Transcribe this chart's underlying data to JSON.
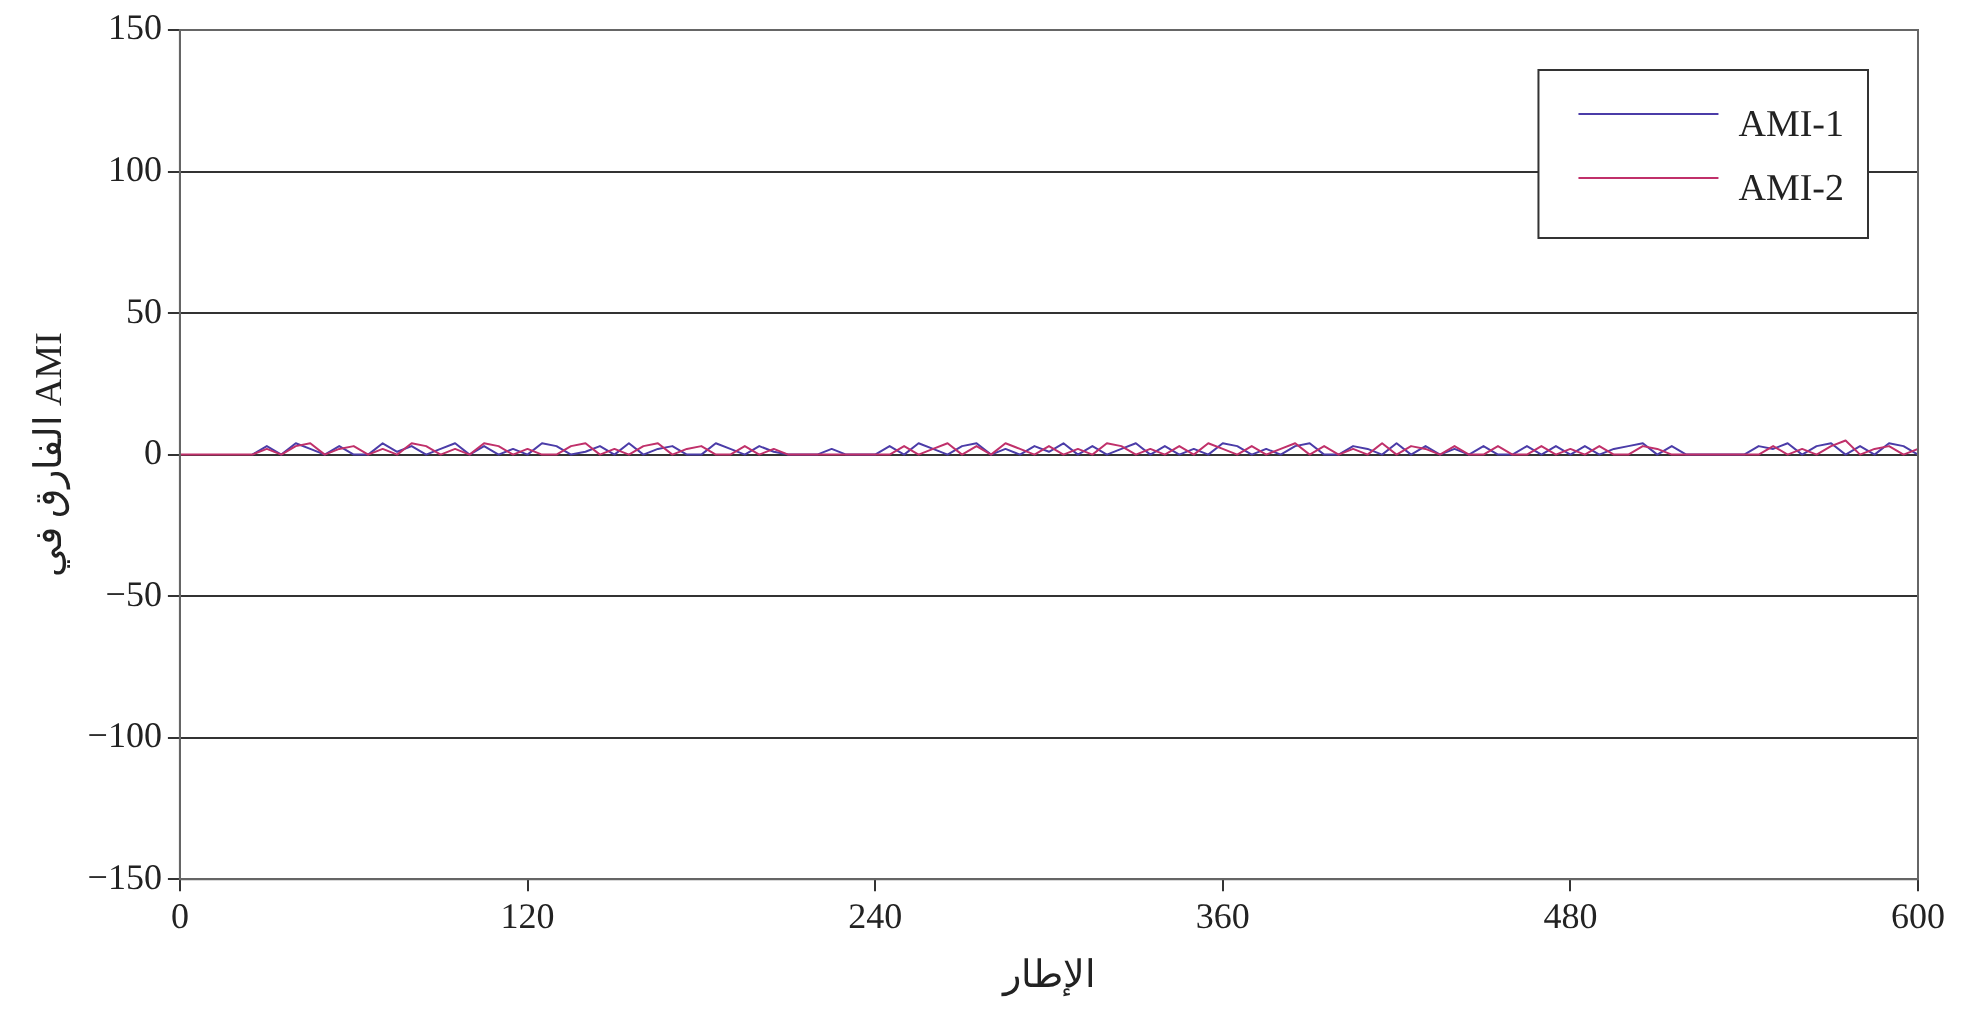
{
  "chart_data": {
    "type": "line",
    "xlabel": "الإطار",
    "ylabel": "الفارق في AMI",
    "x": [
      0,
      5,
      10,
      15,
      20,
      25,
      30,
      35,
      40,
      45,
      50,
      55,
      60,
      65,
      70,
      75,
      80,
      85,
      90,
      95,
      100,
      105,
      110,
      115,
      120,
      125,
      130,
      135,
      140,
      145,
      150,
      155,
      160,
      165,
      170,
      175,
      180,
      185,
      190,
      195,
      200,
      205,
      210,
      215,
      220,
      225,
      230,
      235,
      240,
      245,
      250,
      255,
      260,
      265,
      270,
      275,
      280,
      285,
      290,
      295,
      300,
      305,
      310,
      315,
      320,
      325,
      330,
      335,
      340,
      345,
      350,
      355,
      360,
      365,
      370,
      375,
      380,
      385,
      390,
      395,
      400,
      405,
      410,
      415,
      420,
      425,
      430,
      435,
      440,
      445,
      450,
      455,
      460,
      465,
      470,
      475,
      480,
      485,
      490,
      495,
      500,
      505,
      510,
      515,
      520,
      525,
      530,
      535,
      540,
      545,
      550,
      555,
      560,
      565,
      570,
      575,
      580,
      585,
      590,
      595,
      600
    ],
    "series": [
      {
        "name": "AMI-1",
        "color": "#4b3ca8",
        "values": [
          null,
          null,
          null,
          null,
          null,
          0,
          3,
          0,
          4,
          2,
          0,
          3,
          0,
          0,
          4,
          1,
          3,
          0,
          2,
          4,
          0,
          3,
          0,
          2,
          0,
          4,
          3,
          0,
          1,
          3,
          0,
          4,
          0,
          2,
          3,
          0,
          0,
          4,
          2,
          0,
          3,
          1,
          0,
          0,
          0,
          2,
          0,
          0,
          0,
          3,
          0,
          4,
          2,
          0,
          3,
          4,
          0,
          2,
          0,
          3,
          1,
          4,
          0,
          3,
          0,
          2,
          4,
          0,
          3,
          0,
          2,
          0,
          4,
          3,
          0,
          2,
          0,
          3,
          4,
          0,
          0,
          3,
          2,
          0,
          4,
          0,
          3,
          0,
          2,
          0,
          3,
          0,
          0,
          3,
          0,
          3,
          0,
          3,
          0,
          2,
          3,
          4,
          0,
          3,
          0,
          0,
          0,
          0,
          0,
          3,
          2,
          4,
          0,
          3,
          4,
          0,
          3,
          0,
          4,
          3,
          0
        ]
      },
      {
        "name": "AMI-2",
        "color": "#c0306a",
        "values": [
          0,
          0,
          0,
          0,
          0,
          0,
          2,
          0,
          3,
          4,
          0,
          2,
          3,
          0,
          2,
          0,
          4,
          3,
          0,
          2,
          0,
          4,
          3,
          0,
          2,
          0,
          0,
          3,
          4,
          0,
          2,
          0,
          3,
          4,
          0,
          2,
          3,
          0,
          0,
          3,
          0,
          2,
          0,
          0,
          0,
          0,
          0,
          0,
          0,
          0,
          3,
          0,
          2,
          4,
          0,
          3,
          0,
          4,
          2,
          0,
          3,
          0,
          2,
          0,
          4,
          3,
          0,
          2,
          0,
          3,
          0,
          4,
          2,
          0,
          3,
          0,
          2,
          4,
          0,
          3,
          0,
          2,
          0,
          4,
          0,
          3,
          2,
          0,
          3,
          0,
          0,
          3,
          0,
          0,
          3,
          0,
          2,
          0,
          3,
          0,
          0,
          3,
          2,
          0,
          0,
          0,
          0,
          0,
          0,
          0,
          3,
          0,
          2,
          0,
          3,
          5,
          0,
          2,
          3,
          0,
          2
        ]
      }
    ],
    "xlim": [
      0,
      600
    ],
    "xticks": [
      0,
      120,
      240,
      360,
      480,
      600
    ],
    "ylim": [
      -150,
      150
    ],
    "yticks": [
      {
        "value": -150,
        "label": "−150"
      },
      {
        "value": -100,
        "label": "−100"
      },
      {
        "value": -50,
        "label": "−50"
      },
      0,
      50,
      100,
      150
    ],
    "grid": "y",
    "legend": "top right",
    "marker": "none",
    "line_style": "solid"
  }
}
